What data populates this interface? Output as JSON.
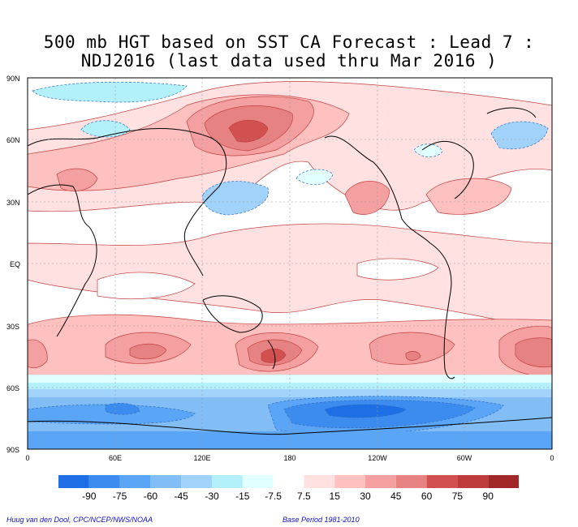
{
  "title": {
    "line1": "500 mb HGT based on SST CA Forecast : Lead 7 :",
    "line2": "NDJ2016 (last data used thru Mar 2016 )"
  },
  "axes": {
    "lat_labels": [
      "90N",
      "60N",
      "30N",
      "EQ",
      "30S",
      "60S",
      "90S"
    ],
    "lon_labels": [
      "0",
      "60E",
      "120E",
      "180",
      "120W",
      "60W",
      "0"
    ]
  },
  "legend": {
    "labels": [
      "-90",
      "-75",
      "-60",
      "-45",
      "-30",
      "-15",
      "-7.5",
      "7.5",
      "15",
      "30",
      "45",
      "60",
      "75",
      "90"
    ],
    "colors": [
      "#1e6ee6",
      "#3c8cf0",
      "#5aa5f5",
      "#82bef5",
      "#a0d2fa",
      "#b4f0fa",
      "#e1ffff",
      "#ffffff",
      "#ffe1e1",
      "#ffc0c0",
      "#f5a0a0",
      "#e68282",
      "#d25050",
      "#be3c3c",
      "#a02828"
    ]
  },
  "footer": {
    "left": "Huug van den Dool, CPC/NCEP/NWS/NOAA",
    "right": "Base Period 1981-2010"
  },
  "chart_data": {
    "type": "heatmap",
    "variable": "500 mb height anomaly",
    "units_note": "contour levels",
    "levels": [
      -90,
      -75,
      -60,
      -45,
      -30,
      -15,
      -7.5,
      7.5,
      15,
      30,
      45,
      60,
      75,
      90
    ],
    "x_range": [
      0,
      360
    ],
    "y_range": [
      -90,
      90
    ],
    "features": [
      {
        "lon": 150,
        "lat": 62,
        "value": 75
      },
      {
        "lon": 150,
        "lat": 35,
        "value": -30
      },
      {
        "lon": 60,
        "lat": 80,
        "value": -15
      },
      {
        "lon": 20,
        "lat": 40,
        "value": 30
      },
      {
        "lon": 230,
        "lat": 35,
        "value": 30
      },
      {
        "lon": 285,
        "lat": 35,
        "value": 15
      },
      {
        "lon": 340,
        "lat": 60,
        "value": -30
      },
      {
        "lon": 0,
        "lat": -40,
        "value": 45
      },
      {
        "lon": 85,
        "lat": -40,
        "value": 45
      },
      {
        "lon": 165,
        "lat": -40,
        "value": 60
      },
      {
        "lon": 265,
        "lat": -40,
        "value": 45
      },
      {
        "lon": 350,
        "lat": -40,
        "value": 45
      },
      {
        "lon": 200,
        "lat": -70,
        "value": -75
      },
      {
        "lon": 60,
        "lat": -65,
        "value": -45
      }
    ]
  }
}
